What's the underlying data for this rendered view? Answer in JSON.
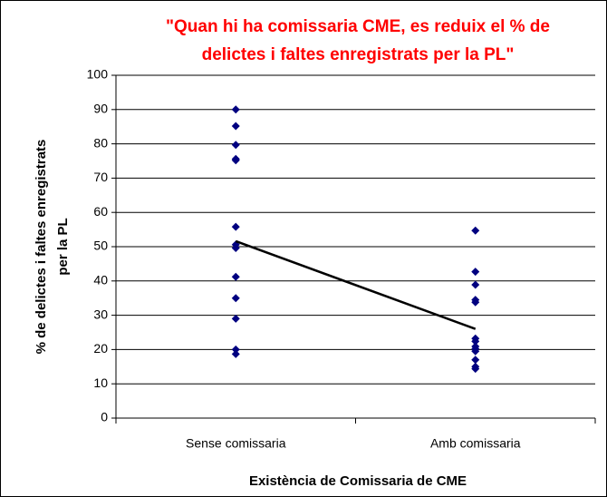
{
  "chart_data": {
    "type": "scatter",
    "title": [
      "\"Quan hi ha comissaria CME, es reduix el % de",
      "delictes i faltes enregistrats per la PL\""
    ],
    "y_label": [
      "% de delictes i faltes enregistrats",
      "per la PL"
    ],
    "x_label": "Existència de Comissaria de CME",
    "categories": [
      "Sense comissaria",
      "Amb comissaria"
    ],
    "values": [
      [
        90,
        85.2,
        79.7,
        75.6,
        75.2,
        55.8,
        50.6,
        49.6,
        41.2,
        35,
        29,
        20,
        18.7
      ],
      [
        54.7,
        42.7,
        38.9,
        34.5,
        33.8,
        23.2,
        22.4,
        20.9,
        20.2,
        19.5,
        17,
        15,
        14.4
      ]
    ],
    "color": "#000080",
    "line_values": [
      51.6,
      26
    ],
    "line_color": "#000000",
    "ylim": [
      0,
      100
    ],
    "yticks": [
      0,
      10,
      20,
      30,
      40,
      50,
      60,
      70,
      80,
      90,
      100
    ],
    "grid": true
  }
}
